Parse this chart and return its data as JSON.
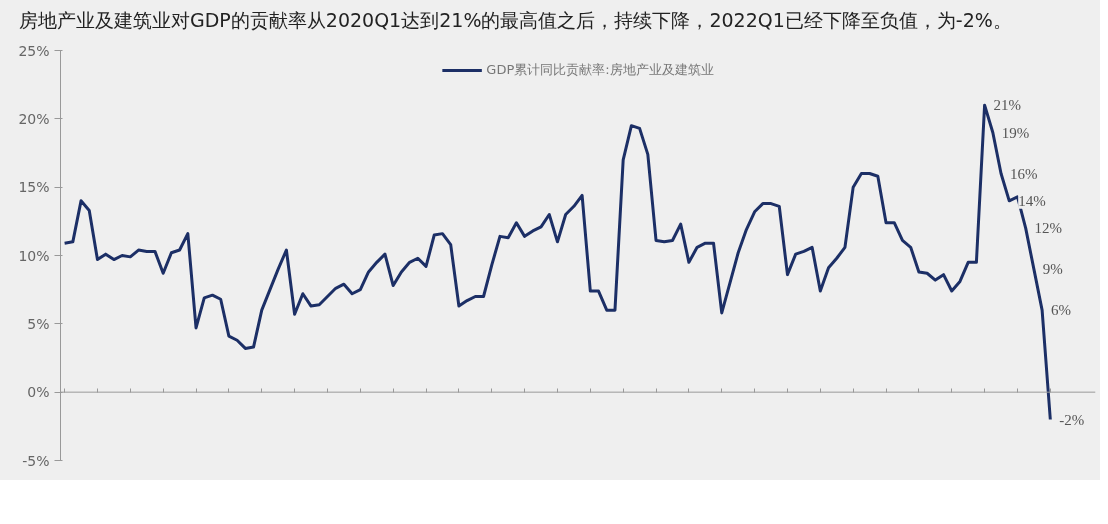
{
  "chart_data": {
    "type": "line",
    "title": "房地产业及建筑业对GDP的贡献率从2020Q1达到21%的最高值之后，持续下降，2022Q1已经下降至负值，为-2%。",
    "categories": [
      null,
      null,
      null,
      null,
      null,
      null,
      null,
      null,
      null,
      null,
      null,
      null,
      null,
      null,
      null,
      null,
      null,
      null,
      null,
      null,
      null,
      null,
      null,
      null,
      null,
      null,
      null,
      null,
      null,
      null,
      null,
      null,
      null,
      null,
      null,
      null,
      null,
      null,
      null,
      null,
      null,
      null,
      null,
      null,
      null,
      null,
      null,
      null,
      null,
      null,
      null,
      null,
      null,
      null,
      null,
      null,
      null,
      null,
      null,
      null,
      null,
      null,
      null,
      null,
      null,
      null,
      null,
      null,
      null,
      null,
      null,
      null,
      null,
      null,
      null,
      null,
      null,
      null,
      null,
      null,
      null,
      null,
      null,
      null,
      null,
      null,
      null,
      null,
      null,
      null,
      null,
      null,
      null,
      null,
      null,
      null,
      null,
      null,
      null,
      null,
      null,
      null,
      null,
      null,
      null,
      null,
      null,
      null,
      null,
      null,
      null,
      null,
      null,
      null,
      null,
      null,
      null,
      null,
      null,
      null,
      null
    ],
    "series": [
      {
        "name": "GDP累计同比贡献率:房地产业及建筑业",
        "color": "#1c2f66",
        "values": [
          10.9,
          11.0,
          14.0,
          13.3,
          9.7,
          10.1,
          9.7,
          10.0,
          9.9,
          10.4,
          10.3,
          10.3,
          8.7,
          10.2,
          10.4,
          11.6,
          4.7,
          6.9,
          7.1,
          6.8,
          4.1,
          3.8,
          3.2,
          3.3,
          6.0,
          7.5,
          9.0,
          10.4,
          5.7,
          7.2,
          6.3,
          6.4,
          7.0,
          7.6,
          7.9,
          7.2,
          7.5,
          8.8,
          9.5,
          10.1,
          7.8,
          8.8,
          9.5,
          9.8,
          9.2,
          11.5,
          11.6,
          10.8,
          6.3,
          6.7,
          7.0,
          7.0,
          9.3,
          11.4,
          11.3,
          12.4,
          11.4,
          11.8,
          12.1,
          13.0,
          11.0,
          13.0,
          13.6,
          14.4,
          7.4,
          7.4,
          6.0,
          6.0,
          17.0,
          19.5,
          19.3,
          17.4,
          11.1,
          11.0,
          11.1,
          12.3,
          9.5,
          10.6,
          10.9,
          10.9,
          5.8,
          8.0,
          10.2,
          11.9,
          13.2,
          13.8,
          13.8,
          13.6,
          8.6,
          10.1,
          10.3,
          10.6,
          7.4,
          9.1,
          9.8,
          10.6,
          15.0,
          16.0,
          16.0,
          15.8,
          12.4,
          12.4,
          11.1,
          10.6,
          8.8,
          8.7,
          8.2,
          8.6,
          7.4,
          8.1,
          9.5,
          9.5,
          21,
          19,
          16,
          14,
          14.3,
          12,
          9,
          6,
          -2
        ],
        "value_labels": [
          null,
          null,
          null,
          null,
          null,
          null,
          null,
          null,
          null,
          null,
          null,
          null,
          null,
          null,
          null,
          null,
          null,
          null,
          null,
          null,
          null,
          null,
          null,
          null,
          null,
          null,
          null,
          null,
          null,
          null,
          null,
          null,
          null,
          null,
          null,
          null,
          null,
          null,
          null,
          null,
          null,
          null,
          null,
          null,
          null,
          null,
          null,
          null,
          null,
          null,
          null,
          null,
          null,
          null,
          null,
          null,
          null,
          null,
          null,
          null,
          null,
          null,
          null,
          null,
          null,
          null,
          null,
          null,
          null,
          null,
          null,
          null,
          null,
          null,
          null,
          null,
          null,
          null,
          null,
          null,
          null,
          null,
          null,
          null,
          null,
          null,
          null,
          null,
          null,
          null,
          null,
          null,
          null,
          null,
          null,
          null,
          null,
          null,
          null,
          null,
          null,
          null,
          null,
          null,
          null,
          null,
          null,
          null,
          null,
          null,
          null,
          null,
          "21%",
          "19%",
          "16%",
          "14%",
          null,
          "12%",
          "9%",
          "6%",
          "-2%"
        ]
      }
    ],
    "ylim": [
      -5,
      25
    ],
    "yticks": [
      {
        "value": -5,
        "label": "-5%"
      },
      {
        "value": 0,
        "label": "0%"
      },
      {
        "value": 5,
        "label": "5%"
      },
      {
        "value": 10,
        "label": "10%"
      },
      {
        "value": 15,
        "label": "15%"
      },
      {
        "value": 20,
        "label": "20%"
      },
      {
        "value": 25,
        "label": "25%"
      }
    ],
    "tick_labels": "y",
    "grid": false,
    "ref_lines": [
      {
        "axis": "y",
        "value": 0,
        "color": "#999999"
      }
    ],
    "legend": "top",
    "marker": "none",
    "line_style": "solid"
  }
}
